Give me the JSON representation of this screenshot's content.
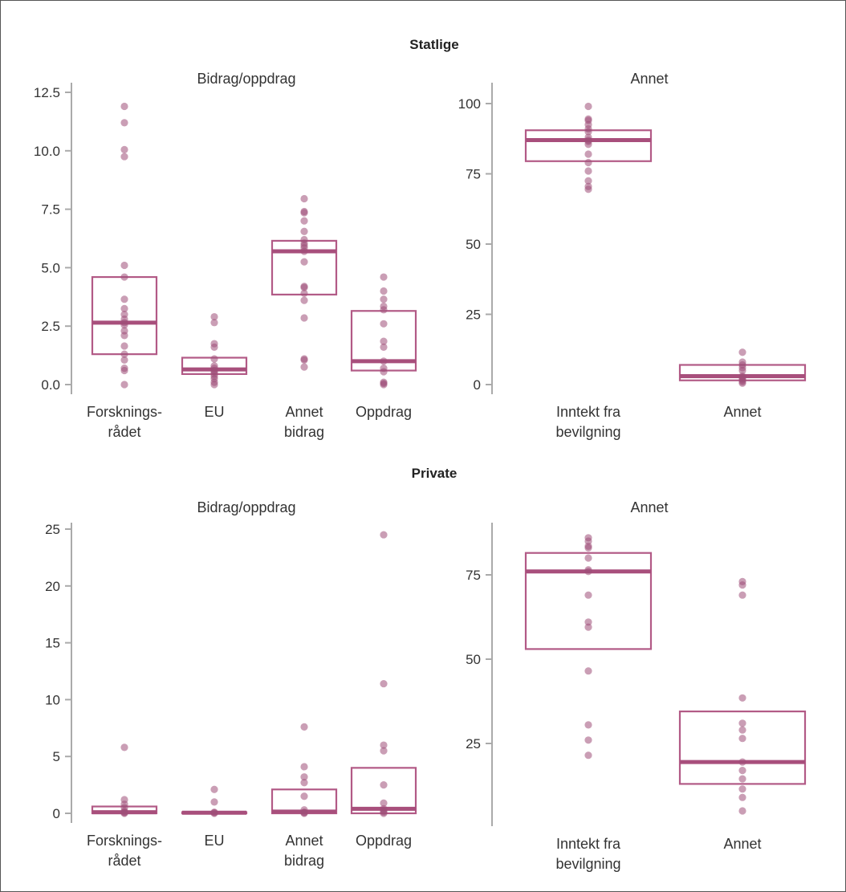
{
  "figure": {
    "colors": {
      "box": "#b25a86",
      "median": "#a84f7c",
      "point": "#9e4f78",
      "axis": "#aaaaaa"
    }
  },
  "chart_data": [
    {
      "type": "box",
      "group": "Statlige",
      "title": "Bidrag/oppdrag",
      "categories": [
        "Forsknings-\nrådet",
        "EU",
        "Annet\nbidrag",
        "Oppdrag"
      ],
      "yticks": [
        0.0,
        2.5,
        5.0,
        7.5,
        10.0,
        12.5
      ],
      "ytick_labels": [
        "0.0",
        "2.5",
        "5.0",
        "7.5",
        "10.0",
        "12.5"
      ],
      "ylim": [
        -0.3,
        12.8
      ],
      "boxes": [
        {
          "q1": 1.3,
          "median": 2.65,
          "q3": 4.6
        },
        {
          "q1": 0.45,
          "median": 0.65,
          "q3": 1.15
        },
        {
          "q1": 3.85,
          "median": 5.7,
          "q3": 6.15
        },
        {
          "q1": 0.6,
          "median": 1.0,
          "q3": 3.15
        }
      ],
      "points": [
        [
          0,
          0.6,
          0.7,
          1.05,
          1.3,
          1.65,
          2.1,
          2.3,
          2.55,
          2.65,
          2.8,
          3.0,
          3.25,
          3.65,
          4.6,
          5.1,
          9.75,
          10.05,
          11.2,
          11.9
        ],
        [
          0,
          0.1,
          0.25,
          0.35,
          0.45,
          0.55,
          0.6,
          0.7,
          0.8,
          1.1,
          1.6,
          1.75,
          2.65,
          2.9
        ],
        [
          0.75,
          1.05,
          1.1,
          2.85,
          3.6,
          3.9,
          4.15,
          4.2,
          5.25,
          5.7,
          5.85,
          5.95,
          6.05,
          6.2,
          6.55,
          7.0,
          7.35,
          7.4,
          7.95
        ],
        [
          0,
          0.05,
          0.1,
          0.55,
          0.7,
          1.0,
          1.6,
          1.85,
          2.6,
          3.2,
          3.35,
          3.65,
          4.0,
          4.6
        ]
      ]
    },
    {
      "type": "box",
      "group": "Statlige",
      "title": "Annet",
      "categories": [
        "Inntekt fra\nbevilgning",
        "Annet"
      ],
      "yticks": [
        0,
        25,
        50,
        75,
        100
      ],
      "ytick_labels": [
        "0",
        "25",
        "50",
        "75",
        "100"
      ],
      "ylim": [
        -4,
        104
      ],
      "boxes": [
        {
          "q1": 79.5,
          "median": 87,
          "q3": 90.5
        },
        {
          "q1": 1.5,
          "median": 3,
          "q3": 7
        }
      ],
      "points": [
        [
          69.5,
          70.5,
          72.5,
          76,
          79,
          82,
          85.5,
          86.5,
          87,
          88,
          90,
          91,
          92.5,
          94,
          94.5,
          99
        ],
        [
          0.5,
          1,
          1.5,
          2,
          2.5,
          3,
          5,
          6,
          7,
          8,
          11.5
        ]
      ]
    },
    {
      "type": "box",
      "group": "Private",
      "title": "Bidrag/oppdrag",
      "categories": [
        "Forsknings-\nrådet",
        "EU",
        "Annet\nbidrag",
        "Oppdrag"
      ],
      "yticks": [
        0,
        5,
        10,
        15,
        20,
        25
      ],
      "ytick_labels": [
        "0",
        "5",
        "10",
        "15",
        "20",
        "25"
      ],
      "ylim": [
        -0.5,
        25.8
      ],
      "boxes": [
        {
          "q1": 0,
          "median": 0.1,
          "q3": 0.6
        },
        {
          "q1": 0,
          "median": 0.05,
          "q3": 0.1
        },
        {
          "q1": 0,
          "median": 0.15,
          "q3": 2.1
        },
        {
          "q1": 0,
          "median": 0.4,
          "q3": 4.0
        }
      ],
      "points": [
        [
          0,
          0.05,
          0.1,
          0.2,
          0.5,
          0.8,
          1.2,
          5.8
        ],
        [
          0,
          0.05,
          0.1,
          1.0,
          2.1
        ],
        [
          0,
          0.05,
          0.1,
          0.3,
          1.5,
          2.7,
          3.2,
          4.1,
          7.6
        ],
        [
          0,
          0.1,
          0.2,
          0.4,
          0.9,
          2.5,
          5.5,
          6.0,
          11.4,
          24.5
        ]
      ]
    },
    {
      "type": "box",
      "group": "Private",
      "title": "Annet",
      "categories": [
        "Inntekt fra\nbevilgning",
        "Annet"
      ],
      "yticks": [
        25,
        50,
        75
      ],
      "ytick_labels": [
        "25",
        "50",
        "75"
      ],
      "ylim": [
        2,
        90
      ],
      "boxes": [
        {
          "q1": 53,
          "median": 76,
          "q3": 81.5
        },
        {
          "q1": 13,
          "median": 19.5,
          "q3": 34.5
        }
      ],
      "points": [
        [
          21.5,
          26,
          30.5,
          46.5,
          59.5,
          61,
          69,
          76,
          76.5,
          80,
          83,
          83.5,
          85,
          86
        ],
        [
          5,
          9,
          11.5,
          14.5,
          17,
          19.5,
          26.5,
          29,
          31,
          38.5,
          69,
          72,
          73
        ]
      ]
    }
  ]
}
